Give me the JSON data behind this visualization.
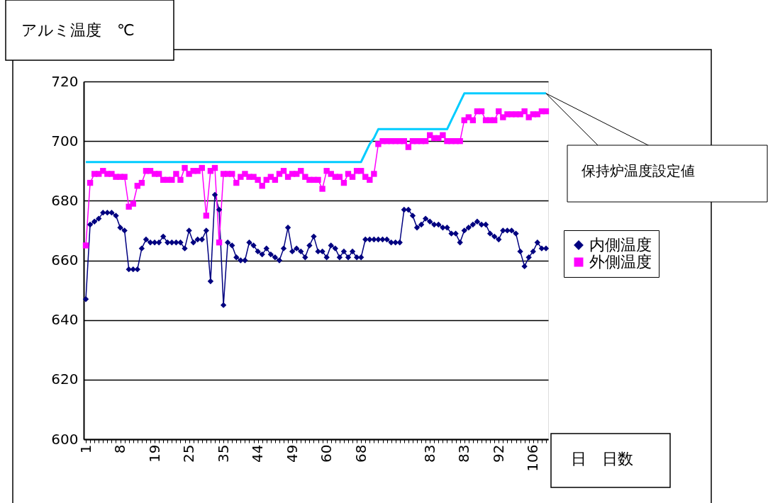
{
  "chart_data": {
    "type": "line",
    "xlabel": "日　日数",
    "ylabel": "アルミ温度　℃",
    "categories": [
      "1",
      null,
      null,
      null,
      null,
      null,
      null,
      null,
      "8",
      null,
      null,
      null,
      null,
      null,
      null,
      null,
      "19",
      null,
      null,
      null,
      null,
      null,
      null,
      null,
      "25",
      null,
      null,
      null,
      null,
      null,
      null,
      null,
      "35",
      null,
      null,
      null,
      null,
      null,
      null,
      null,
      "44",
      null,
      null,
      null,
      null,
      null,
      null,
      null,
      "49",
      null,
      null,
      null,
      null,
      null,
      null,
      null,
      "60",
      null,
      null,
      null,
      null,
      null,
      null,
      null,
      "68",
      null,
      null,
      null,
      null,
      null,
      null,
      null,
      null,
      null,
      null,
      null,
      null,
      null,
      null,
      null,
      "83",
      null,
      null,
      null,
      null,
      null,
      null,
      null,
      "83",
      null,
      null,
      null,
      null,
      null,
      null,
      null,
      "92",
      null,
      null,
      null,
      null,
      null,
      null,
      null,
      "106",
      null,
      null,
      null
    ],
    "series": [
      {
        "name": "内側温度",
        "color": "#000080",
        "marker": "diamond",
        "values": [
          647,
          672,
          673,
          674,
          676,
          676,
          676,
          675,
          671,
          670,
          657,
          657,
          657,
          664,
          667,
          666,
          666,
          666,
          668,
          666,
          666,
          666,
          666,
          664,
          670,
          666,
          667,
          667,
          670,
          653,
          682,
          677,
          645,
          666,
          665,
          661,
          660,
          660,
          666,
          665,
          663,
          662,
          664,
          662,
          661,
          660,
          664,
          671,
          663,
          664,
          663,
          661,
          665,
          668,
          663,
          663,
          661,
          665,
          664,
          661,
          663,
          661,
          663,
          661,
          661,
          667,
          667,
          667,
          667,
          667,
          667,
          666,
          666,
          666,
          677,
          677,
          675,
          671,
          672,
          674,
          673,
          672,
          672,
          671,
          671,
          669,
          669,
          666,
          670,
          671,
          672,
          673,
          672,
          672,
          669,
          668,
          667,
          670,
          670,
          670,
          669,
          663,
          658,
          661,
          663,
          666,
          664,
          664
        ]
      },
      {
        "name": "外側温度",
        "color": "#ff00ff",
        "marker": "square",
        "values": [
          665,
          686,
          689,
          689,
          690,
          689,
          689,
          688,
          688,
          688,
          678,
          679,
          685,
          686,
          690,
          690,
          689,
          689,
          687,
          687,
          687,
          689,
          687,
          691,
          689,
          690,
          690,
          691,
          675,
          690,
          691,
          666,
          689,
          689,
          689,
          686,
          688,
          689,
          688,
          688,
          687,
          685,
          687,
          688,
          687,
          689,
          690,
          688,
          689,
          689,
          690,
          688,
          687,
          687,
          687,
          684,
          690,
          689,
          688,
          688,
          686,
          689,
          688,
          690,
          690,
          688,
          687,
          689,
          699,
          700,
          700,
          700,
          700,
          700,
          700,
          698,
          700,
          700,
          700,
          700,
          702,
          701,
          701,
          702,
          700,
          700,
          700,
          700,
          707,
          708,
          707,
          710,
          710,
          707,
          707,
          707,
          710,
          708,
          709,
          709,
          709,
          709,
          710,
          708,
          709,
          709,
          710,
          710
        ]
      },
      {
        "name": "保持炉温度設定値",
        "color": "#00ccff",
        "marker": "none",
        "values": [
          693,
          693,
          693,
          693,
          693,
          693,
          693,
          693,
          693,
          693,
          693,
          693,
          693,
          693,
          693,
          693,
          693,
          693,
          693,
          693,
          693,
          693,
          693,
          693,
          693,
          693,
          693,
          693,
          693,
          693,
          693,
          693,
          693,
          693,
          693,
          693,
          693,
          693,
          693,
          693,
          693,
          693,
          693,
          693,
          693,
          693,
          693,
          693,
          693,
          693,
          693,
          693,
          693,
          693,
          693,
          693,
          693,
          693,
          693,
          693,
          693,
          693,
          693,
          693,
          693,
          696,
          699,
          701,
          704,
          704,
          704,
          704,
          704,
          704,
          704,
          704,
          704,
          704,
          704,
          704,
          704,
          704,
          704,
          704,
          704,
          707,
          710,
          713,
          716,
          716,
          716,
          716,
          716,
          716,
          716,
          716,
          716,
          716,
          716,
          716,
          716,
          716,
          716,
          716,
          716,
          716,
          716,
          716
        ]
      }
    ],
    "ylim": [
      600,
      720
    ],
    "yticks": [
      600,
      620,
      640,
      660,
      680,
      700,
      720
    ],
    "grid": "y",
    "legend": "right"
  }
}
